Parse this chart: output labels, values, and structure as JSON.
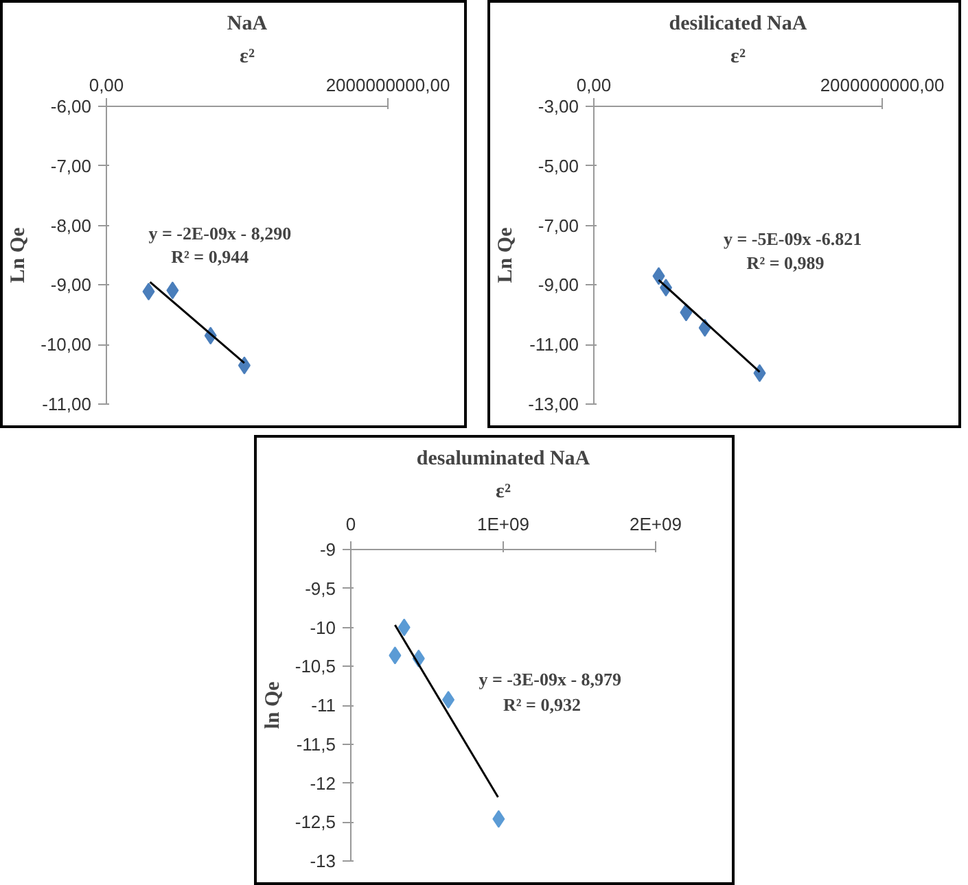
{
  "chart_data": [
    {
      "type": "scatter",
      "title": "NaA",
      "xlabel": "ε²",
      "ylabel": "Ln Qe",
      "marker": "diamond",
      "grid": false,
      "xlim": [
        0,
        2000000000
      ],
      "xticks": [
        {
          "value": 0,
          "label": "0,00"
        },
        {
          "value": 2000000000,
          "label": "2000000000,00"
        }
      ],
      "ylim": [
        -11,
        -6
      ],
      "yticks": [
        {
          "value": -6,
          "label": "-6,00"
        },
        {
          "value": -7,
          "label": "-7,00"
        },
        {
          "value": -8,
          "label": "-8,00"
        },
        {
          "value": -9,
          "label": "-9,00"
        },
        {
          "value": -10,
          "label": "-10,00"
        },
        {
          "value": -11,
          "label": "-11,00"
        }
      ],
      "series": [
        {
          "color": "#4a7ebb",
          "x": [
            300000000,
            470000000,
            740000000,
            980000000
          ],
          "values": [
            -9.11,
            -9.09,
            -9.85,
            -10.35
          ]
        },
        {
          "type": "line",
          "marker": "none",
          "color": "#000000",
          "x": [
            310000000,
            980000000
          ],
          "values": [
            -8.95,
            -10.31
          ]
        }
      ],
      "annotations": [
        "y = -2E-09x - 8,290",
        "R² = 0,944"
      ]
    },
    {
      "type": "scatter",
      "title": "desilicated NaA",
      "xlabel": "ε²",
      "ylabel": "Ln Qe",
      "marker": "diamond",
      "grid": false,
      "xlim": [
        0,
        2000000000
      ],
      "xticks": [
        {
          "value": 0,
          "label": "0,00"
        },
        {
          "value": 2000000000,
          "label": "2000000000,00"
        }
      ],
      "ylim": [
        -13,
        -3
      ],
      "yticks": [
        {
          "value": -3,
          "label": "-3,00"
        },
        {
          "value": -5,
          "label": "-5,00"
        },
        {
          "value": -7,
          "label": "-7,00"
        },
        {
          "value": -9,
          "label": "-9,00"
        },
        {
          "value": -11,
          "label": "-11,00"
        },
        {
          "value": -13,
          "label": "-13,00"
        }
      ],
      "series": [
        {
          "color": "#4a7ebb",
          "x": [
            450000000,
            500000000,
            640000000,
            770000000,
            1150000000
          ],
          "values": [
            -8.7,
            -9.09,
            -9.92,
            -10.44,
            -11.96
          ]
        },
        {
          "type": "line",
          "marker": "none",
          "color": "#000000",
          "x": [
            450000000,
            1150000000
          ],
          "values": [
            -8.83,
            -11.92
          ]
        }
      ],
      "annotations": [
        "y = -5E-09x -6.821",
        "R² = 0,989"
      ]
    },
    {
      "type": "scatter",
      "title": "desaluminated NaA",
      "xlabel": "ε²",
      "ylabel": "ln Qe",
      "marker": "diamond",
      "grid": false,
      "xlim": [
        0,
        2000000000
      ],
      "xticks": [
        0,
        {
          "value": 1000000000,
          "label": "1E+09"
        },
        {
          "value": 2000000000,
          "label": "2E+09"
        }
      ],
      "ylim": [
        -13,
        -9
      ],
      "yticks": [
        -9,
        {
          "value": -9.5,
          "label": "-9,5"
        },
        -10,
        {
          "value": -10.5,
          "label": "-10,5"
        },
        -11,
        {
          "value": -11.5,
          "label": "-11,5"
        },
        -12,
        {
          "value": -12.5,
          "label": "-12,5"
        },
        -13
      ],
      "series": [
        {
          "color": "#5b9bd5",
          "x": [
            350000000,
            290000000,
            445000000,
            640000000,
            970000000
          ],
          "values": [
            -10.0,
            -10.36,
            -10.4,
            -10.93,
            -12.46
          ]
        },
        {
          "type": "line",
          "marker": "none",
          "color": "#000000",
          "x": [
            290000000,
            966000000
          ],
          "values": [
            -9.97,
            -12.18
          ]
        }
      ],
      "annotations": [
        "y = -3E-09x - 8,979",
        "R² = 0,932"
      ]
    }
  ]
}
